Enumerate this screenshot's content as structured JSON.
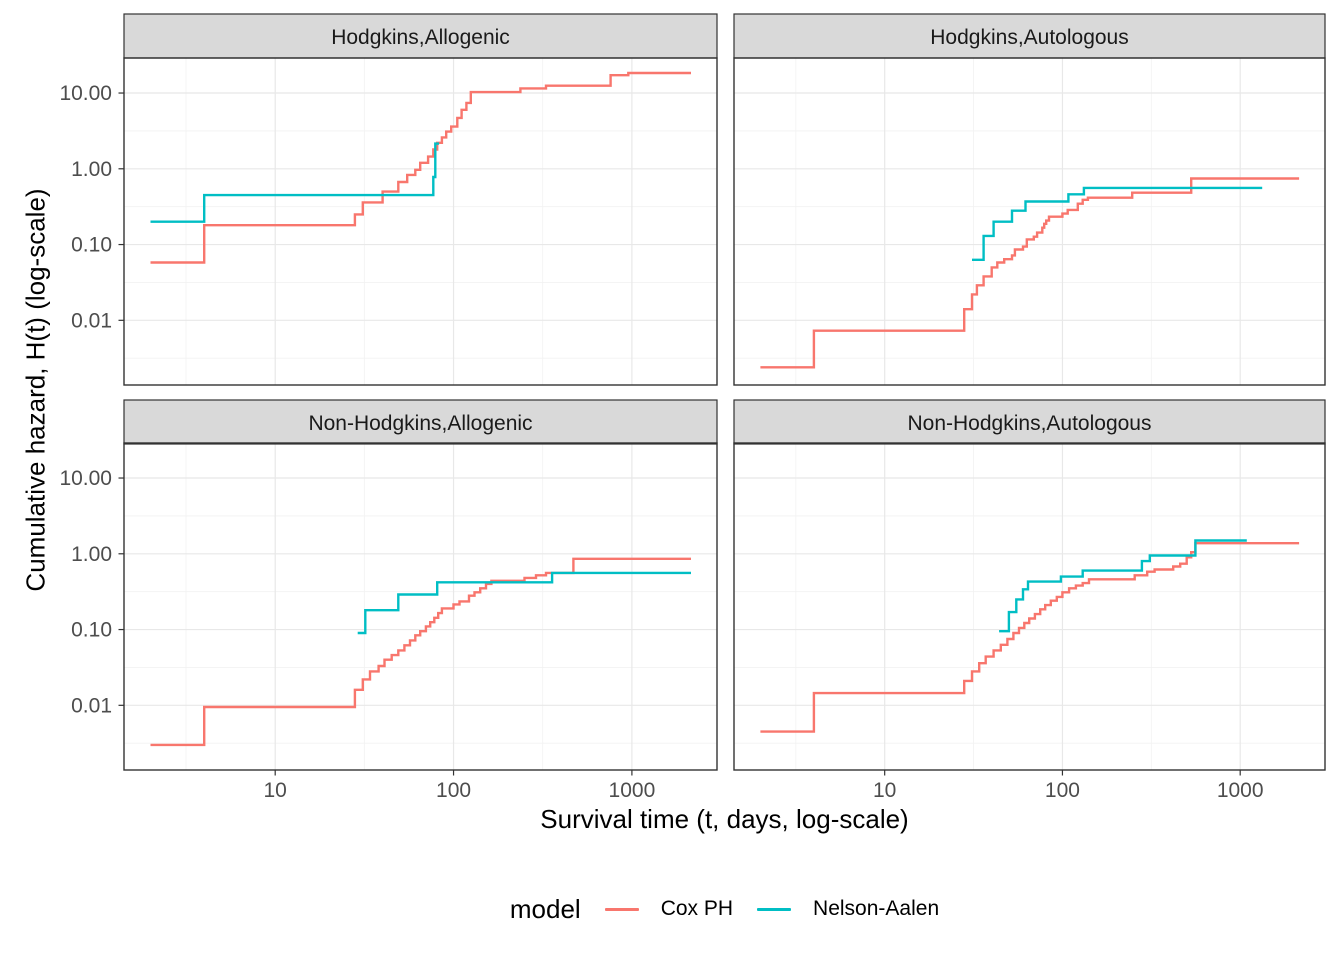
{
  "figure": {
    "x_axis": {
      "title": "Survival time (t, days, log-scale)",
      "ticks": [
        {
          "label": "10",
          "value": 10
        },
        {
          "label": "100",
          "value": 100
        },
        {
          "label": "1000",
          "value": 1000
        }
      ]
    },
    "y_axis": {
      "title": "Cumulative hazard, H(t) (log-scale)",
      "ticks": [
        {
          "label": "10.00",
          "value": 10
        },
        {
          "label": "1.00",
          "value": 1
        },
        {
          "label": "0.10",
          "value": 0.1
        },
        {
          "label": "0.01",
          "value": 0.01
        }
      ]
    }
  },
  "legend": {
    "title": "model",
    "entries": [
      {
        "label": "Cox PH",
        "color": "#F8766D"
      },
      {
        "label": "Nelson-Aalen",
        "color": "#00BEC4"
      }
    ]
  },
  "colors": {
    "strip_fill": "#D9D9D9",
    "panel_border": "#333333",
    "grid_major": "#E8E8E8",
    "grid_minor": "#F2F2F2",
    "tick_text": "#4D4D4D",
    "strip_text": "#1A1A1A"
  },
  "chart_data": {
    "type": "line",
    "step": true,
    "x_scale": "log10",
    "y_scale": "log10",
    "x_domain": [
      1.42,
      3000
    ],
    "y_domain": [
      0.0014,
      29
    ],
    "x_minor_breaks": [
      3.162,
      31.62,
      316.2
    ],
    "y_minor_breaks": [
      0.003162,
      0.03162,
      0.3162,
      3.162
    ],
    "grid": true,
    "legend_position": "bottom",
    "panels": [
      {
        "title": "Hodgkins,Allogenic",
        "series": [
          {
            "name": "Cox PH",
            "color": "#F8766D",
            "points": [
              [
                2,
                0.058
              ],
              [
                4,
                0.18
              ],
              [
                28,
                0.25
              ],
              [
                31,
                0.36
              ],
              [
                40,
                0.5
              ],
              [
                49,
                0.67
              ],
              [
                55,
                0.83
              ],
              [
                61,
                0.97
              ],
              [
                65,
                1.2
              ],
              [
                72,
                1.45
              ],
              [
                77,
                1.8
              ],
              [
                81,
                2.2
              ],
              [
                86,
                2.6
              ],
              [
                91,
                3.1
              ],
              [
                97,
                3.6
              ],
              [
                105,
                4.7
              ],
              [
                111,
                6
              ],
              [
                118,
                7.4
              ],
              [
                125,
                10.3
              ],
              [
                237,
                11.5
              ],
              [
                330,
                12.5
              ],
              [
                760,
                17.2
              ],
              [
                955,
                18.4
              ],
              [
                2144,
                18.4
              ]
            ]
          },
          {
            "name": "Nelson-Aalen",
            "color": "#00BEC4",
            "points": [
              [
                2,
                0.2
              ],
              [
                4,
                0.45
              ],
              [
                77,
                0.78
              ],
              [
                79,
                2.15
              ],
              [
                83,
                2.15
              ]
            ]
          }
        ]
      },
      {
        "title": "Hodgkins,Autologous",
        "series": [
          {
            "name": "Cox PH",
            "color": "#F8766D",
            "points": [
              [
                2,
                0.0024
              ],
              [
                4,
                0.0073
              ],
              [
                28,
                0.014
              ],
              [
                31,
                0.022
              ],
              [
                33,
                0.029
              ],
              [
                36,
                0.038
              ],
              [
                40,
                0.05
              ],
              [
                43,
                0.058
              ],
              [
                47,
                0.064
              ],
              [
                52,
                0.072
              ],
              [
                54,
                0.086
              ],
              [
                60,
                0.094
              ],
              [
                63,
                0.117
              ],
              [
                69,
                0.127
              ],
              [
                72,
                0.144
              ],
              [
                77,
                0.167
              ],
              [
                79,
                0.188
              ],
              [
                81,
                0.207
              ],
              [
                84,
                0.233
              ],
              [
                100,
                0.256
              ],
              [
                107,
                0.287
              ],
              [
                122,
                0.346
              ],
              [
                130,
                0.39
              ],
              [
                139,
                0.415
              ],
              [
                247,
                0.483
              ],
              [
                530,
                0.745
              ],
              [
                2144,
                0.745
              ]
            ]
          },
          {
            "name": "Nelson-Aalen",
            "color": "#00BEC4",
            "points": [
              [
                31,
                0.063
              ],
              [
                36,
                0.13
              ],
              [
                41,
                0.2
              ],
              [
                52,
                0.28
              ],
              [
                62,
                0.37
              ],
              [
                108,
                0.46
              ],
              [
                132,
                0.56
              ],
              [
                1330,
                0.56
              ]
            ]
          }
        ]
      },
      {
        "title": "Non-Hodgkins,Allogenic",
        "series": [
          {
            "name": "Cox PH",
            "color": "#F8766D",
            "points": [
              [
                2,
                0.003
              ],
              [
                4,
                0.0095
              ],
              [
                28,
                0.016
              ],
              [
                31,
                0.022
              ],
              [
                34,
                0.028
              ],
              [
                38,
                0.033
              ],
              [
                41,
                0.04
              ],
              [
                45,
                0.046
              ],
              [
                49,
                0.053
              ],
              [
                53,
                0.062
              ],
              [
                57,
                0.072
              ],
              [
                61,
                0.084
              ],
              [
                65,
                0.095
              ],
              [
                70,
                0.11
              ],
              [
                74,
                0.125
              ],
              [
                78,
                0.143
              ],
              [
                82,
                0.165
              ],
              [
                86,
                0.19
              ],
              [
                100,
                0.215
              ],
              [
                108,
                0.235
              ],
              [
                122,
                0.28
              ],
              [
                131,
                0.31
              ],
              [
                141,
                0.35
              ],
              [
                152,
                0.4
              ],
              [
                163,
                0.44
              ],
              [
                250,
                0.48
              ],
              [
                290,
                0.52
              ],
              [
                330,
                0.56
              ],
              [
                470,
                0.86
              ],
              [
                2144,
                0.86
              ]
            ]
          },
          {
            "name": "Nelson-Aalen",
            "color": "#00BEC4",
            "points": [
              [
                29,
                0.09
              ],
              [
                32,
                0.18
              ],
              [
                49,
                0.29
              ],
              [
                81,
                0.42
              ],
              [
                357,
                0.56
              ],
              [
                2144,
                0.56
              ]
            ]
          }
        ]
      },
      {
        "title": "Non-Hodgkins,Autologous",
        "series": [
          {
            "name": "Cox PH",
            "color": "#F8766D",
            "points": [
              [
                2,
                0.0045
              ],
              [
                4,
                0.0145
              ],
              [
                28,
                0.021
              ],
              [
                31,
                0.028
              ],
              [
                34,
                0.036
              ],
              [
                37,
                0.044
              ],
              [
                41,
                0.053
              ],
              [
                45,
                0.063
              ],
              [
                49,
                0.075
              ],
              [
                53,
                0.09
              ],
              [
                57,
                0.105
              ],
              [
                61,
                0.122
              ],
              [
                65,
                0.14
              ],
              [
                70,
                0.16
              ],
              [
                75,
                0.185
              ],
              [
                80,
                0.21
              ],
              [
                86,
                0.24
              ],
              [
                93,
                0.27
              ],
              [
                100,
                0.31
              ],
              [
                109,
                0.35
              ],
              [
                119,
                0.38
              ],
              [
                130,
                0.41
              ],
              [
                141,
                0.46
              ],
              [
                255,
                0.52
              ],
              [
                300,
                0.58
              ],
              [
                330,
                0.62
              ],
              [
                420,
                0.68
              ],
              [
                460,
                0.74
              ],
              [
                500,
                0.9
              ],
              [
                530,
                1.05
              ],
              [
                560,
                1.38
              ],
              [
                2144,
                1.38
              ]
            ]
          },
          {
            "name": "Nelson-Aalen",
            "color": "#00BEC4",
            "points": [
              [
                44,
                0.095
              ],
              [
                50,
                0.17
              ],
              [
                55,
                0.25
              ],
              [
                60,
                0.34
              ],
              [
                64,
                0.43
              ],
              [
                98,
                0.5
              ],
              [
                130,
                0.6
              ],
              [
                280,
                0.8
              ],
              [
                310,
                0.95
              ],
              [
                560,
                1.5
              ],
              [
                1090,
                1.5
              ]
            ]
          }
        ]
      }
    ]
  }
}
